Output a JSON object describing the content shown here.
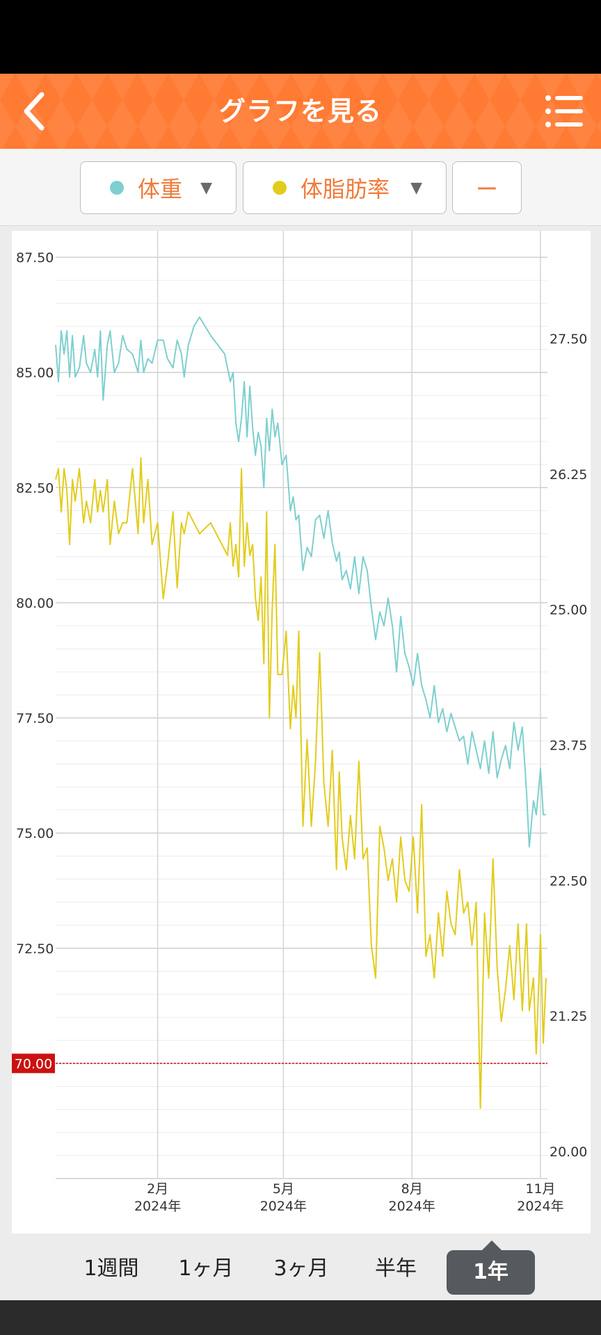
{
  "header": {
    "title": "グラフを見る",
    "back_icon": "chevron-left-icon",
    "menu_icon": "list-menu-icon"
  },
  "selectors": [
    {
      "label": "体重",
      "color": "#7ecfcf",
      "has_dropdown": true
    },
    {
      "label": "体脂肪率",
      "color": "#e2cc1c",
      "has_dropdown": true
    },
    {
      "label": "ー",
      "has_dropdown": false
    }
  ],
  "chart_data": {
    "type": "line",
    "x_range": [
      "2023-11-20",
      "2024-11-05"
    ],
    "x_ticks": [
      {
        "date": "2024-02-01",
        "label": "2月",
        "sub": "2024年"
      },
      {
        "date": "2024-05-01",
        "label": "5月",
        "sub": "2024年"
      },
      {
        "date": "2024-08-01",
        "label": "8月",
        "sub": "2024年"
      },
      {
        "date": "2024-11-01",
        "label": "11月",
        "sub": "2024年"
      }
    ],
    "y_left": {
      "min": 67.5,
      "max": 87.5,
      "ticks": [
        "87.50",
        "85.00",
        "82.50",
        "80.00",
        "77.50",
        "75.00",
        "72.50"
      ]
    },
    "y_right": {
      "min": 19.75,
      "max": 28.25,
      "ticks": [
        "27.50",
        "26.25",
        "25.00",
        "23.75",
        "22.50",
        "21.25",
        "20.00"
      ]
    },
    "target_line": {
      "value": 70.0,
      "label": "70.00",
      "color": "#cc1111"
    },
    "series": [
      {
        "name": "体重",
        "axis": "left",
        "color": "#7ecfcf",
        "points": [
          [
            "2023-11-20",
            85.6
          ],
          [
            "2023-11-22",
            84.8
          ],
          [
            "2023-11-24",
            85.9
          ],
          [
            "2023-11-26",
            85.4
          ],
          [
            "2023-11-28",
            85.9
          ],
          [
            "2023-11-30",
            84.9
          ],
          [
            "2023-12-02",
            85.8
          ],
          [
            "2023-12-04",
            84.9
          ],
          [
            "2023-12-07",
            85.1
          ],
          [
            "2023-12-10",
            85.8
          ],
          [
            "2023-12-12",
            85.2
          ],
          [
            "2023-12-15",
            85.0
          ],
          [
            "2023-12-18",
            85.5
          ],
          [
            "2023-12-20",
            84.9
          ],
          [
            "2023-12-22",
            85.9
          ],
          [
            "2023-12-24",
            84.4
          ],
          [
            "2023-12-27",
            85.6
          ],
          [
            "2023-12-29",
            85.9
          ],
          [
            "2024-01-01",
            85.0
          ],
          [
            "2024-01-04",
            85.2
          ],
          [
            "2024-01-07",
            85.8
          ],
          [
            "2024-01-10",
            85.5
          ],
          [
            "2024-01-14",
            85.4
          ],
          [
            "2024-01-18",
            85.0
          ],
          [
            "2024-01-20",
            85.7
          ],
          [
            "2024-01-22",
            85.0
          ],
          [
            "2024-01-25",
            85.3
          ],
          [
            "2024-01-28",
            85.2
          ],
          [
            "2024-02-01",
            85.7
          ],
          [
            "2024-02-05",
            85.7
          ],
          [
            "2024-02-08",
            85.3
          ],
          [
            "2024-02-12",
            85.1
          ],
          [
            "2024-02-15",
            85.7
          ],
          [
            "2024-02-18",
            85.4
          ],
          [
            "2024-02-20",
            84.9
          ],
          [
            "2024-02-23",
            85.6
          ],
          [
            "2024-02-27",
            86.0
          ],
          [
            "2024-03-02",
            86.2
          ],
          [
            "2024-03-10",
            85.8
          ],
          [
            "2024-03-20",
            85.4
          ],
          [
            "2024-03-24",
            84.8
          ],
          [
            "2024-03-26",
            85.0
          ],
          [
            "2024-03-28",
            83.9
          ],
          [
            "2024-03-30",
            83.5
          ],
          [
            "2024-04-01",
            84.0
          ],
          [
            "2024-04-03",
            84.8
          ],
          [
            "2024-04-05",
            83.6
          ],
          [
            "2024-04-07",
            84.7
          ],
          [
            "2024-04-09",
            83.8
          ],
          [
            "2024-04-11",
            83.2
          ],
          [
            "2024-04-13",
            83.7
          ],
          [
            "2024-04-15",
            83.4
          ],
          [
            "2024-04-17",
            82.5
          ],
          [
            "2024-04-19",
            84.0
          ],
          [
            "2024-04-21",
            83.3
          ],
          [
            "2024-04-23",
            84.2
          ],
          [
            "2024-04-25",
            83.6
          ],
          [
            "2024-04-27",
            83.9
          ],
          [
            "2024-04-30",
            83.0
          ],
          [
            "2024-05-03",
            83.2
          ],
          [
            "2024-05-06",
            82.0
          ],
          [
            "2024-05-08",
            82.3
          ],
          [
            "2024-05-10",
            81.8
          ],
          [
            "2024-05-12",
            81.9
          ],
          [
            "2024-05-15",
            80.7
          ],
          [
            "2024-05-18",
            81.2
          ],
          [
            "2024-05-21",
            81.0
          ],
          [
            "2024-05-24",
            81.8
          ],
          [
            "2024-05-27",
            81.9
          ],
          [
            "2024-05-30",
            81.4
          ],
          [
            "2024-06-02",
            82.0
          ],
          [
            "2024-06-05",
            81.3
          ],
          [
            "2024-06-08",
            80.9
          ],
          [
            "2024-06-10",
            81.1
          ],
          [
            "2024-06-12",
            80.5
          ],
          [
            "2024-06-15",
            80.7
          ],
          [
            "2024-06-18",
            80.3
          ],
          [
            "2024-06-21",
            81.0
          ],
          [
            "2024-06-24",
            80.2
          ],
          [
            "2024-06-27",
            81.0
          ],
          [
            "2024-06-30",
            80.7
          ],
          [
            "2024-07-03",
            79.9
          ],
          [
            "2024-07-06",
            79.2
          ],
          [
            "2024-07-09",
            79.8
          ],
          [
            "2024-07-12",
            79.5
          ],
          [
            "2024-07-15",
            80.1
          ],
          [
            "2024-07-18",
            79.5
          ],
          [
            "2024-07-21",
            78.5
          ],
          [
            "2024-07-24",
            79.7
          ],
          [
            "2024-07-27",
            78.9
          ],
          [
            "2024-07-30",
            78.6
          ],
          [
            "2024-08-02",
            78.2
          ],
          [
            "2024-08-05",
            78.9
          ],
          [
            "2024-08-08",
            78.2
          ],
          [
            "2024-08-11",
            77.9
          ],
          [
            "2024-08-14",
            77.5
          ],
          [
            "2024-08-17",
            78.2
          ],
          [
            "2024-08-20",
            77.4
          ],
          [
            "2024-08-23",
            77.7
          ],
          [
            "2024-08-26",
            77.2
          ],
          [
            "2024-08-29",
            77.6
          ],
          [
            "2024-09-01",
            77.3
          ],
          [
            "2024-09-04",
            77.0
          ],
          [
            "2024-09-07",
            77.1
          ],
          [
            "2024-09-10",
            76.5
          ],
          [
            "2024-09-13",
            77.2
          ],
          [
            "2024-09-16",
            76.8
          ],
          [
            "2024-09-19",
            76.4
          ],
          [
            "2024-09-22",
            77.0
          ],
          [
            "2024-09-25",
            76.3
          ],
          [
            "2024-09-28",
            77.2
          ],
          [
            "2024-10-01",
            76.2
          ],
          [
            "2024-10-04",
            76.6
          ],
          [
            "2024-10-07",
            76.9
          ],
          [
            "2024-10-10",
            76.4
          ],
          [
            "2024-10-13",
            77.4
          ],
          [
            "2024-10-16",
            76.8
          ],
          [
            "2024-10-19",
            77.3
          ],
          [
            "2024-10-22",
            75.9
          ],
          [
            "2024-10-24",
            74.7
          ],
          [
            "2024-10-27",
            75.7
          ],
          [
            "2024-10-29",
            75.4
          ],
          [
            "2024-11-01",
            76.4
          ],
          [
            "2024-11-03",
            75.4
          ],
          [
            "2024-11-05",
            75.4
          ]
        ]
      },
      {
        "name": "体脂肪率",
        "axis": "right",
        "color": "#e2cc1c",
        "points": [
          [
            "2023-11-20",
            26.2
          ],
          [
            "2023-11-22",
            26.3
          ],
          [
            "2023-11-24",
            25.9
          ],
          [
            "2023-11-26",
            26.3
          ],
          [
            "2023-11-28",
            26.1
          ],
          [
            "2023-11-30",
            25.6
          ],
          [
            "2023-12-02",
            26.2
          ],
          [
            "2023-12-04",
            26.0
          ],
          [
            "2023-12-07",
            26.3
          ],
          [
            "2023-12-10",
            25.8
          ],
          [
            "2023-12-12",
            26.0
          ],
          [
            "2023-12-15",
            25.8
          ],
          [
            "2023-12-18",
            26.2
          ],
          [
            "2023-12-20",
            25.9
          ],
          [
            "2023-12-22",
            26.1
          ],
          [
            "2023-12-24",
            25.9
          ],
          [
            "2023-12-27",
            26.2
          ],
          [
            "2023-12-29",
            25.6
          ],
          [
            "2024-01-01",
            26.0
          ],
          [
            "2024-01-04",
            25.7
          ],
          [
            "2024-01-07",
            25.8
          ],
          [
            "2024-01-10",
            25.8
          ],
          [
            "2024-01-14",
            26.3
          ],
          [
            "2024-01-18",
            25.7
          ],
          [
            "2024-01-20",
            26.4
          ],
          [
            "2024-01-22",
            25.8
          ],
          [
            "2024-01-25",
            26.2
          ],
          [
            "2024-01-28",
            25.6
          ],
          [
            "2024-02-01",
            25.8
          ],
          [
            "2024-02-05",
            25.1
          ],
          [
            "2024-02-08",
            25.4
          ],
          [
            "2024-02-12",
            25.9
          ],
          [
            "2024-02-15",
            25.2
          ],
          [
            "2024-02-18",
            25.8
          ],
          [
            "2024-02-20",
            25.7
          ],
          [
            "2024-02-23",
            25.9
          ],
          [
            "2024-02-27",
            25.8
          ],
          [
            "2024-03-02",
            25.7
          ],
          [
            "2024-03-10",
            25.8
          ],
          [
            "2024-03-22",
            25.5
          ],
          [
            "2024-03-24",
            25.8
          ],
          [
            "2024-03-26",
            25.4
          ],
          [
            "2024-03-28",
            25.6
          ],
          [
            "2024-03-30",
            25.3
          ],
          [
            "2024-04-01",
            26.3
          ],
          [
            "2024-04-03",
            25.4
          ],
          [
            "2024-04-05",
            25.8
          ],
          [
            "2024-04-07",
            25.5
          ],
          [
            "2024-04-09",
            25.6
          ],
          [
            "2024-04-11",
            25.1
          ],
          [
            "2024-04-13",
            24.9
          ],
          [
            "2024-04-15",
            25.3
          ],
          [
            "2024-04-17",
            24.5
          ],
          [
            "2024-04-19",
            25.9
          ],
          [
            "2024-04-21",
            24.0
          ],
          [
            "2024-04-23",
            25.0
          ],
          [
            "2024-04-25",
            25.6
          ],
          [
            "2024-04-27",
            24.4
          ],
          [
            "2024-04-30",
            24.4
          ],
          [
            "2024-05-03",
            24.8
          ],
          [
            "2024-05-06",
            23.9
          ],
          [
            "2024-05-08",
            24.3
          ],
          [
            "2024-05-10",
            24.0
          ],
          [
            "2024-05-12",
            24.8
          ],
          [
            "2024-05-15",
            23.0
          ],
          [
            "2024-05-18",
            23.8
          ],
          [
            "2024-05-21",
            23.0
          ],
          [
            "2024-05-24",
            23.6
          ],
          [
            "2024-05-27",
            24.6
          ],
          [
            "2024-05-30",
            23.4
          ],
          [
            "2024-06-02",
            23.0
          ],
          [
            "2024-06-05",
            23.7
          ],
          [
            "2024-06-08",
            22.6
          ],
          [
            "2024-06-10",
            23.5
          ],
          [
            "2024-06-12",
            22.9
          ],
          [
            "2024-06-15",
            22.6
          ],
          [
            "2024-06-18",
            23.1
          ],
          [
            "2024-06-21",
            22.7
          ],
          [
            "2024-06-24",
            23.6
          ],
          [
            "2024-06-27",
            22.7
          ],
          [
            "2024-06-30",
            22.8
          ],
          [
            "2024-07-03",
            21.9
          ],
          [
            "2024-07-06",
            21.6
          ],
          [
            "2024-07-09",
            23.0
          ],
          [
            "2024-07-12",
            22.8
          ],
          [
            "2024-07-15",
            22.5
          ],
          [
            "2024-07-18",
            22.7
          ],
          [
            "2024-07-21",
            22.3
          ],
          [
            "2024-07-24",
            22.9
          ],
          [
            "2024-07-27",
            22.5
          ],
          [
            "2024-07-30",
            22.4
          ],
          [
            "2024-08-02",
            22.9
          ],
          [
            "2024-08-05",
            22.2
          ],
          [
            "2024-08-08",
            23.2
          ],
          [
            "2024-08-11",
            21.8
          ],
          [
            "2024-08-14",
            22.0
          ],
          [
            "2024-08-17",
            21.6
          ],
          [
            "2024-08-20",
            22.2
          ],
          [
            "2024-08-23",
            21.8
          ],
          [
            "2024-08-26",
            22.4
          ],
          [
            "2024-08-29",
            22.1
          ],
          [
            "2024-09-01",
            22.0
          ],
          [
            "2024-09-04",
            22.6
          ],
          [
            "2024-09-07",
            22.2
          ],
          [
            "2024-09-10",
            22.3
          ],
          [
            "2024-09-13",
            21.9
          ],
          [
            "2024-09-16",
            22.3
          ],
          [
            "2024-09-19",
            20.4
          ],
          [
            "2024-09-22",
            22.2
          ],
          [
            "2024-09-25",
            21.6
          ],
          [
            "2024-09-28",
            22.7
          ],
          [
            "2024-10-01",
            21.7
          ],
          [
            "2024-10-04",
            21.2
          ],
          [
            "2024-10-07",
            21.5
          ],
          [
            "2024-10-10",
            21.9
          ],
          [
            "2024-10-13",
            21.4
          ],
          [
            "2024-10-16",
            22.1
          ],
          [
            "2024-10-19",
            21.3
          ],
          [
            "2024-10-22",
            22.1
          ],
          [
            "2024-10-24",
            21.3
          ],
          [
            "2024-10-27",
            21.6
          ],
          [
            "2024-10-29",
            20.9
          ],
          [
            "2024-11-01",
            22.0
          ],
          [
            "2024-11-03",
            21.0
          ],
          [
            "2024-11-05",
            21.6
          ]
        ]
      }
    ]
  },
  "periods": [
    {
      "label": "1週間",
      "active": false
    },
    {
      "label": "1ヶ月",
      "active": false
    },
    {
      "label": "3ヶ月",
      "active": false
    },
    {
      "label": "半年",
      "active": false
    },
    {
      "label": "1年",
      "active": true
    }
  ]
}
